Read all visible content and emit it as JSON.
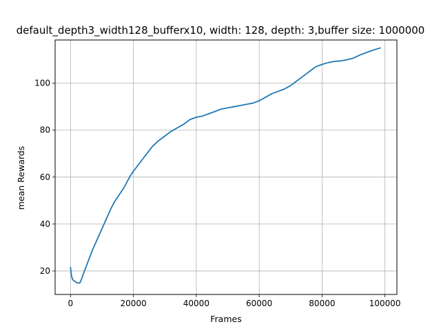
{
  "chart_data": {
    "type": "line",
    "title": "default_depth3_width128_bufferx10, width: 128, depth: 3,buffer size: 1000000",
    "xlabel": "Frames",
    "ylabel": "mean Rewards",
    "xlim": [
      -4900,
      103800
    ],
    "ylim": [
      10.0,
      118.4
    ],
    "xticks": [
      0,
      20000,
      40000,
      60000,
      80000,
      100000
    ],
    "yticks": [
      20,
      40,
      60,
      80,
      100
    ],
    "grid": true,
    "series_color": "#1f77b4",
    "series": [
      {
        "x": [
          0,
          300,
          600,
          900,
          1500,
          2000,
          2500,
          3000,
          3500,
          4000,
          5000,
          6000,
          7000,
          8000,
          9000,
          10000,
          11000,
          12000,
          13000,
          14000,
          15000,
          16000,
          17000,
          18000,
          19000,
          20000,
          22000,
          24000,
          26000,
          28000,
          30000,
          32000,
          34000,
          36000,
          38000,
          40000,
          42000,
          44000,
          46000,
          48000,
          50000,
          52000,
          54000,
          56000,
          58000,
          60000,
          62000,
          64000,
          66000,
          68000,
          70000,
          72000,
          74000,
          76000,
          78000,
          80000,
          82000,
          84000,
          86000,
          88000,
          90000,
          92000,
          94000,
          96000,
          98500
        ],
        "y": [
          21.5,
          18,
          16.5,
          16,
          15.5,
          15,
          14.8,
          15,
          16.5,
          18.5,
          22,
          25.5,
          29,
          32,
          35,
          38,
          41,
          44,
          47,
          49.5,
          51.5,
          53.5,
          55.5,
          58,
          60.5,
          62.5,
          66,
          69.5,
          73,
          75.5,
          77.5,
          79.5,
          81,
          82.5,
          84.5,
          85.5,
          86,
          87,
          88,
          89,
          89.5,
          90,
          90.5,
          91,
          91.5,
          92.5,
          94,
          95.5,
          96.5,
          97.5,
          99,
          101,
          103,
          105,
          107,
          108,
          108.8,
          109.3,
          109.5,
          110,
          110.7,
          112,
          113,
          114,
          115
        ]
      }
    ]
  }
}
